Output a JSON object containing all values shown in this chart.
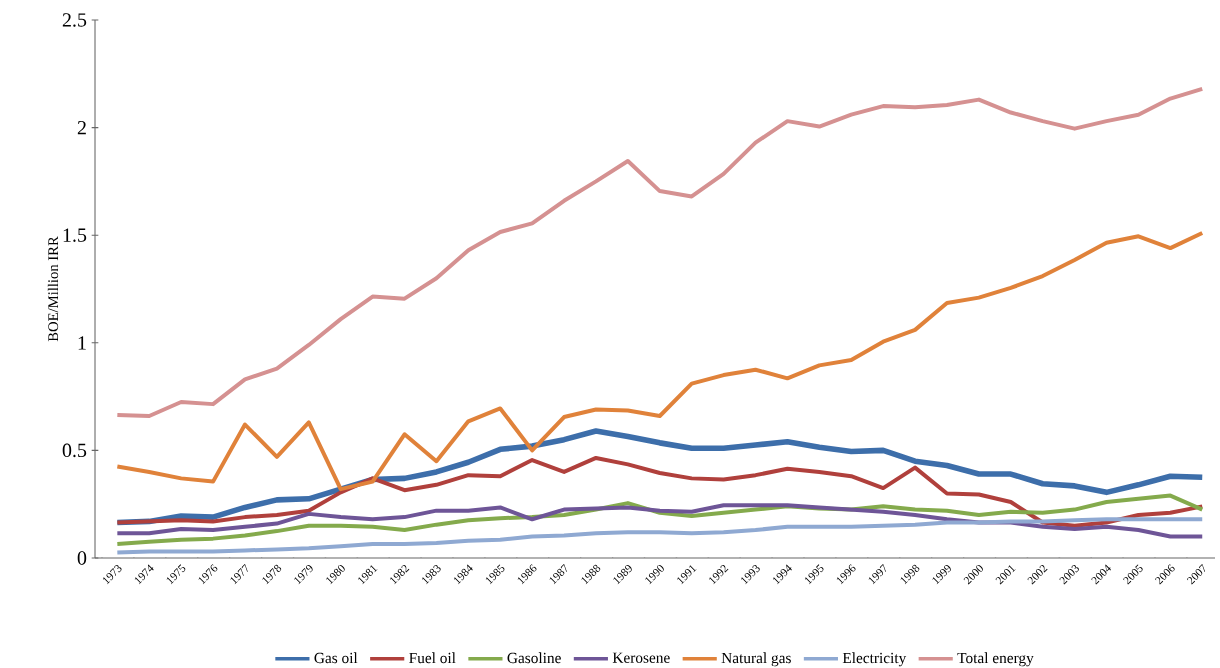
{
  "chart_data": {
    "type": "line",
    "ylabel": "BOE/Million IRR",
    "categories": [
      "1973",
      "1974",
      "1975",
      "1976",
      "1977",
      "1978",
      "1979",
      "1980",
      "1981",
      "1982",
      "1983",
      "1984",
      "1985",
      "1986",
      "1987",
      "1988",
      "1989",
      "1990",
      "1991",
      "1992",
      "1993",
      "1994",
      "1995",
      "1996",
      "1997",
      "1998",
      "1999",
      "2000",
      "2001",
      "2002",
      "2003",
      "2004",
      "2005",
      "2006",
      "2007"
    ],
    "ylim": [
      0,
      2.5
    ],
    "yticks": [
      0,
      0.5,
      1,
      1.5,
      2,
      2.5
    ],
    "grid": false,
    "legend": "bottom",
    "marker": "none",
    "line_style": "solid",
    "series": [
      {
        "name": "Gas oil",
        "color": "#3d6eaa",
        "values": [
          0.165,
          0.17,
          0.195,
          0.19,
          0.235,
          0.27,
          0.275,
          0.32,
          0.365,
          0.37,
          0.4,
          0.445,
          0.505,
          0.52,
          0.55,
          0.59,
          0.565,
          0.535,
          0.51,
          0.51,
          0.525,
          0.54,
          0.515,
          0.495,
          0.5,
          0.45,
          0.43,
          0.39,
          0.39,
          0.345,
          0.335,
          0.305,
          0.34,
          0.38,
          0.375
        ]
      },
      {
        "name": "Fuel oil",
        "color": "#b0403c",
        "values": [
          0.165,
          0.17,
          0.175,
          0.17,
          0.19,
          0.2,
          0.22,
          0.305,
          0.37,
          0.315,
          0.34,
          0.385,
          0.38,
          0.455,
          0.4,
          0.465,
          0.435,
          0.395,
          0.37,
          0.365,
          0.385,
          0.415,
          0.4,
          0.38,
          0.325,
          0.42,
          0.3,
          0.295,
          0.26,
          0.165,
          0.15,
          0.165,
          0.2,
          0.21,
          0.24
        ]
      },
      {
        "name": "Gasoline",
        "color": "#84aa4c",
        "values": [
          0.065,
          0.075,
          0.085,
          0.09,
          0.105,
          0.125,
          0.15,
          0.15,
          0.145,
          0.13,
          0.155,
          0.175,
          0.185,
          0.19,
          0.2,
          0.225,
          0.255,
          0.21,
          0.195,
          0.21,
          0.225,
          0.24,
          0.23,
          0.225,
          0.24,
          0.225,
          0.22,
          0.2,
          0.215,
          0.21,
          0.225,
          0.26,
          0.275,
          0.29,
          0.225
        ]
      },
      {
        "name": "Kerosene",
        "color": "#6e5597",
        "values": [
          0.115,
          0.115,
          0.135,
          0.13,
          0.145,
          0.16,
          0.205,
          0.19,
          0.18,
          0.19,
          0.22,
          0.22,
          0.235,
          0.18,
          0.225,
          0.23,
          0.235,
          0.22,
          0.215,
          0.245,
          0.245,
          0.245,
          0.235,
          0.225,
          0.215,
          0.2,
          0.18,
          0.165,
          0.165,
          0.145,
          0.135,
          0.145,
          0.13,
          0.1,
          0.1
        ]
      },
      {
        "name": "Natural gas",
        "color": "#e0823a",
        "values": [
          0.425,
          0.4,
          0.37,
          0.355,
          0.62,
          0.47,
          0.63,
          0.32,
          0.355,
          0.575,
          0.45,
          0.635,
          0.695,
          0.5,
          0.655,
          0.69,
          0.685,
          0.66,
          0.81,
          0.85,
          0.875,
          0.835,
          0.895,
          0.92,
          1.005,
          1.06,
          1.185,
          1.21,
          1.255,
          1.31,
          1.385,
          1.465,
          1.495,
          1.44,
          1.51
        ]
      },
      {
        "name": "Electricity",
        "color": "#8fa9d2",
        "values": [
          0.025,
          0.03,
          0.03,
          0.03,
          0.035,
          0.04,
          0.045,
          0.055,
          0.065,
          0.065,
          0.07,
          0.08,
          0.085,
          0.1,
          0.105,
          0.115,
          0.12,
          0.12,
          0.115,
          0.12,
          0.13,
          0.145,
          0.145,
          0.145,
          0.15,
          0.155,
          0.165,
          0.165,
          0.17,
          0.17,
          0.175,
          0.18,
          0.18,
          0.18,
          0.18
        ]
      },
      {
        "name": "Total energy",
        "color": "#d59191",
        "values": [
          0.665,
          0.66,
          0.725,
          0.715,
          0.83,
          0.88,
          0.99,
          1.11,
          1.215,
          1.205,
          1.3,
          1.43,
          1.515,
          1.555,
          1.66,
          1.75,
          1.845,
          1.705,
          1.68,
          1.785,
          1.93,
          2.03,
          2.005,
          2.06,
          2.1,
          2.095,
          2.105,
          2.13,
          2.07,
          2.03,
          1.995,
          2.03,
          2.06,
          2.135,
          2.18
        ]
      }
    ]
  }
}
